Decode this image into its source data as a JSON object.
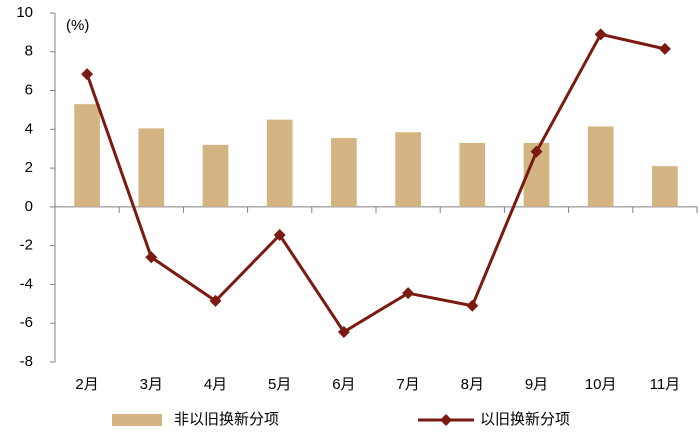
{
  "chart_data": {
    "type": "bar-line",
    "y_axis_label": "(%)",
    "categories": [
      "2月",
      "3月",
      "4月",
      "5月",
      "6月",
      "7月",
      "8月",
      "9月",
      "10月",
      "11月"
    ],
    "series": [
      {
        "name": "非以旧换新分项",
        "type": "bar",
        "color": "#d4b483",
        "values": [
          5.3,
          4.05,
          3.2,
          4.5,
          3.55,
          3.85,
          3.3,
          3.3,
          4.15,
          2.1
        ]
      },
      {
        "name": "以旧换新分项",
        "type": "line",
        "color": "#7b1a10",
        "values": [
          6.85,
          -2.6,
          -4.85,
          -1.45,
          -6.45,
          -4.45,
          -5.1,
          2.85,
          8.9,
          8.15
        ]
      }
    ],
    "ylim": [
      -8,
      10
    ],
    "yticks": [
      -8,
      -6,
      -4,
      -2,
      0,
      2,
      4,
      6,
      8,
      10
    ],
    "grid": false,
    "legend": "bottom"
  }
}
